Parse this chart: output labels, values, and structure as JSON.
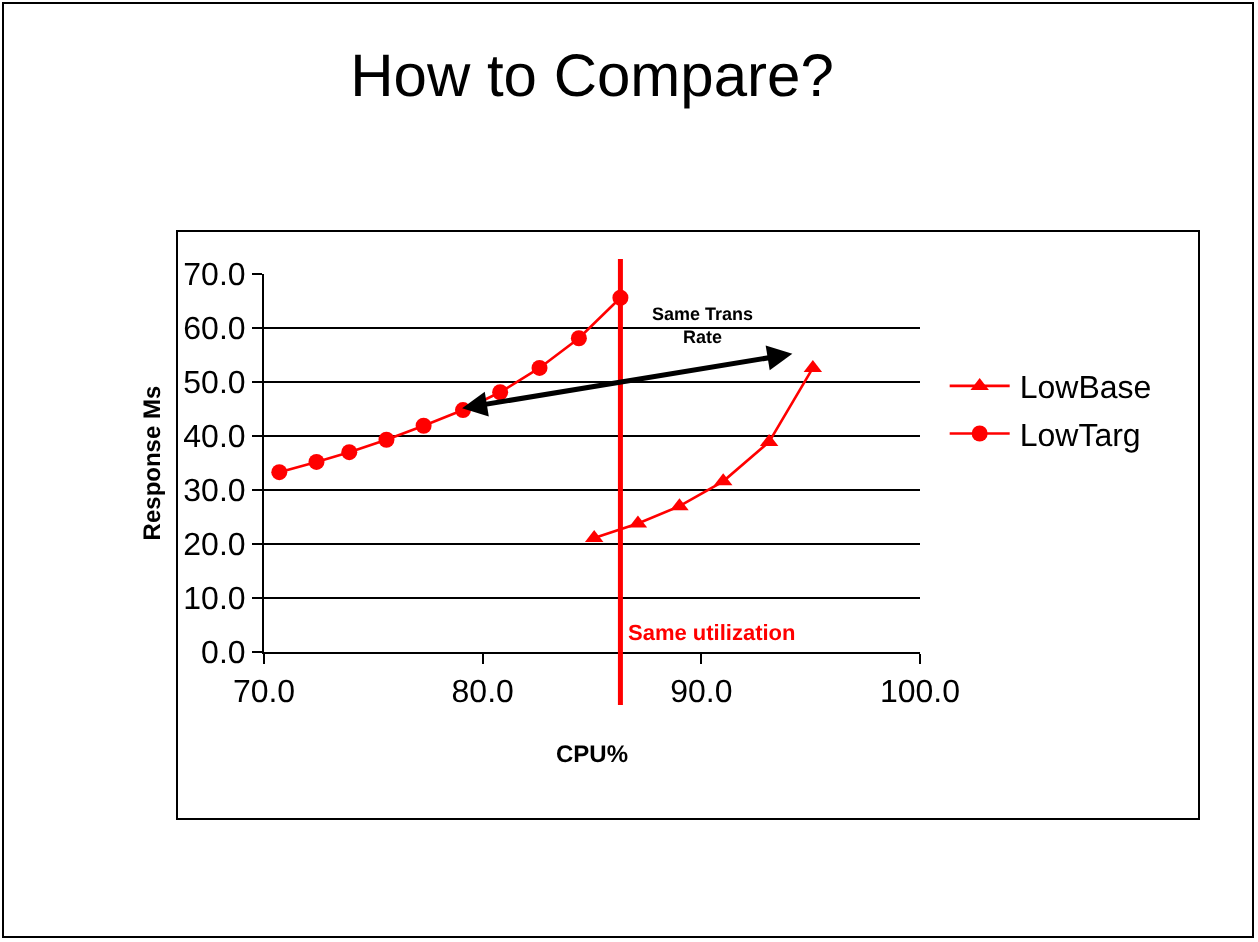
{
  "chart_data": {
    "type": "line",
    "title": "How to Compare?",
    "xlabel": "CPU%",
    "ylabel": "Response Ms",
    "xlim": [
      70,
      100
    ],
    "xticks": [
      {
        "value": 70,
        "label": "70.0"
      },
      {
        "value": 80,
        "label": "80.0"
      },
      {
        "value": 90,
        "label": "90.0"
      },
      {
        "value": 100,
        "label": "100.0"
      }
    ],
    "ylim": [
      0,
      70
    ],
    "yticks": [
      {
        "value": 0,
        "label": "0.0"
      },
      {
        "value": 10,
        "label": "10.0"
      },
      {
        "value": 20,
        "label": "20.0"
      },
      {
        "value": 30,
        "label": "30.0"
      },
      {
        "value": 40,
        "label": "40.0"
      },
      {
        "value": 50,
        "label": "50.0"
      },
      {
        "value": 60,
        "label": "60.0"
      },
      {
        "value": 70,
        "label": "70.0"
      }
    ],
    "grid": "y",
    "legend": "right",
    "line_style": "solid",
    "series": [
      {
        "name": "LowBase",
        "color": "#ff0000",
        "marker": "triangle",
        "x": [
          85.1,
          87.1,
          89.0,
          91.0,
          93.1,
          95.1
        ],
        "values": [
          21.1,
          23.8,
          27.0,
          31.6,
          38.9,
          52.6
        ]
      },
      {
        "name": "LowTarg",
        "color": "#ff0000",
        "marker": "circle",
        "x": [
          70.7,
          72.4,
          73.9,
          75.6,
          77.3,
          79.1,
          80.8,
          82.6,
          84.4,
          86.3
        ],
        "values": [
          33.3,
          35.2,
          37.0,
          39.3,
          41.9,
          44.8,
          48.1,
          52.6,
          58.1,
          65.6
        ]
      }
    ],
    "ref_lines": [
      {
        "axis": "x",
        "value": 86.3,
        "label": "Same utilization",
        "color": "#ff0000"
      }
    ],
    "annotations": [
      "Same Trans Rate"
    ]
  }
}
